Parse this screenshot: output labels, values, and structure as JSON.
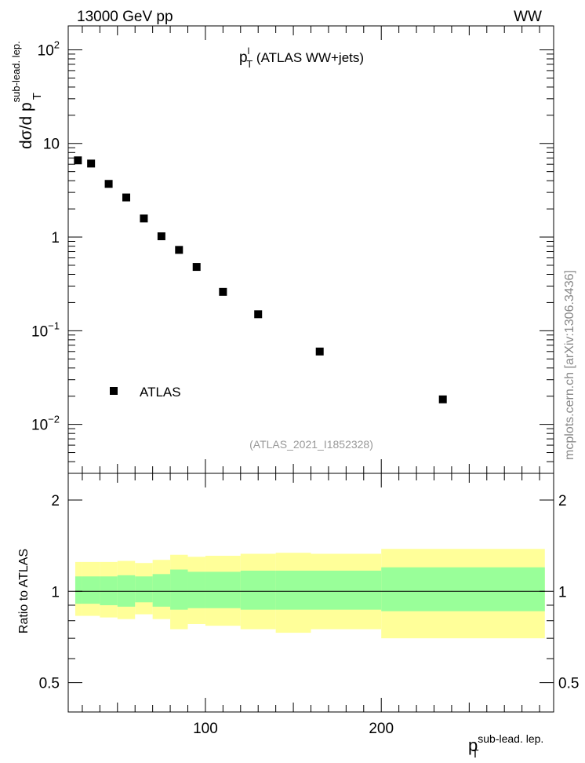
{
  "header": {
    "left": "13000 GeV pp",
    "right": "WW"
  },
  "side_label": "mcplots.cern.ch [arXiv:1306.3436]",
  "chart_data": [
    {
      "type": "scatter",
      "title_main": "p",
      "title_sup": "l",
      "title_sub": "T",
      "title_rest": " (ATLAS WW+jets)",
      "ylabel_main": "dσ/d p",
      "ylabel_sup": "sub-lead. lep.",
      "ylabel_sub": "T",
      "yscale": "log",
      "ylim": [
        0.003,
        180
      ],
      "xlim": [
        22,
        298
      ],
      "y_ticks": [
        {
          "value": 100,
          "base": "10",
          "exp": "2"
        },
        {
          "value": 10,
          "base": "10",
          "exp": ""
        },
        {
          "value": 1,
          "base": "1",
          "exp": ""
        },
        {
          "value": 0.1,
          "base": "10",
          "exp": "−1"
        },
        {
          "value": 0.01,
          "base": "10",
          "exp": "−2"
        }
      ],
      "legend": {
        "entry": "ATLAS",
        "placement": "bottom-left"
      },
      "annotation": "(ATLAS_2021_I1852328)",
      "series": [
        {
          "name": "ATLAS",
          "x": [
            27.5,
            35,
            45,
            55,
            65,
            75,
            85,
            95,
            110,
            130,
            165,
            235
          ],
          "y": [
            6.6,
            6.1,
            3.7,
            2.65,
            1.58,
            1.02,
            0.73,
            0.48,
            0.26,
            0.15,
            0.06,
            0.0185
          ]
        }
      ]
    },
    {
      "type": "area",
      "ylabel": "Ratio to ATLAS",
      "yscale": "log",
      "ylim": [
        0.4,
        2.45
      ],
      "xlim": [
        22,
        298
      ],
      "y_ticks": [
        {
          "value": 0.5,
          "label": "0.5"
        },
        {
          "value": 1,
          "label": "1"
        },
        {
          "value": 2,
          "label": "2"
        }
      ],
      "x_ticks": [
        {
          "value": 100,
          "label": "100"
        },
        {
          "value": 200,
          "label": "200"
        }
      ],
      "xlabel_main": "p",
      "xlabel_sup": "sub-lead. lep.",
      "xlabel_sub": "T",
      "reference_line": 1,
      "bins": [
        22,
        30,
        40,
        50,
        60,
        70,
        80,
        90,
        100,
        120,
        140,
        160,
        200,
        298
      ],
      "bands": [
        {
          "name": "",
          "color": "#ffff99",
          "lo": [
            0.83,
            0.83,
            0.82,
            0.81,
            0.84,
            0.81,
            0.75,
            0.78,
            0.77,
            0.75,
            0.73,
            0.75,
            0.7
          ],
          "hi": [
            1.25,
            1.25,
            1.25,
            1.26,
            1.24,
            1.27,
            1.32,
            1.3,
            1.31,
            1.33,
            1.34,
            1.33,
            1.38
          ]
        },
        {
          "name": "",
          "color": "#99ff99",
          "lo": [
            0.91,
            0.91,
            0.9,
            0.89,
            0.92,
            0.89,
            0.87,
            0.88,
            0.88,
            0.87,
            0.87,
            0.87,
            0.86
          ],
          "hi": [
            1.12,
            1.12,
            1.12,
            1.13,
            1.12,
            1.14,
            1.18,
            1.16,
            1.16,
            1.17,
            1.17,
            1.17,
            1.2
          ]
        }
      ]
    }
  ]
}
